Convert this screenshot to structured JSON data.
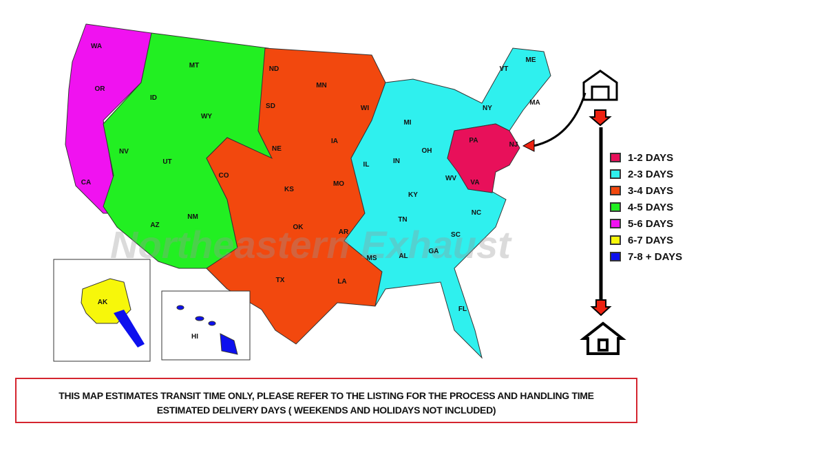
{
  "watermark": "Northeastern Exhaust",
  "zones": [
    {
      "label": "1-2 DAYS",
      "color": "#e8105a"
    },
    {
      "label": "2-3 DAYS",
      "color": "#2ff0ee"
    },
    {
      "label": "3-4 DAYS",
      "color": "#f2480e"
    },
    {
      "label": "4-5 DAYS",
      "color": "#22ef22"
    },
    {
      "label": "5-6 DAYS",
      "color": "#f012f0"
    },
    {
      "label": "6-7 DAYS",
      "color": "#f7f70a"
    },
    {
      "label": "7-8 + DAYS",
      "color": "#0d10ee"
    }
  ],
  "states": [
    "WA",
    "OR",
    "CA",
    "NV",
    "ID",
    "MT",
    "WY",
    "UT",
    "AZ",
    "CO",
    "NM",
    "ND",
    "SD",
    "NE",
    "KS",
    "OK",
    "TX",
    "MN",
    "IA",
    "MO",
    "AR",
    "LA",
    "WI",
    "IL",
    "MI",
    "IN",
    "OH",
    "KY",
    "TN",
    "MS",
    "AL",
    "GA",
    "FL",
    "SC",
    "NC",
    "VA",
    "WV",
    "PA",
    "NY",
    "VT",
    "ME",
    "MA",
    "NJ",
    "AK",
    "HI"
  ],
  "icons": {
    "origin": "warehouse-icon",
    "destination": "house-icon"
  },
  "note": {
    "line1": "THIS MAP ESTIMATES TRANSIT TIME ONLY, PLEASE REFER TO THE LISTING FOR THE PROCESS AND HANDLING TIME",
    "line2": "ESTIMATED DELIVERY DAYS ( WEEKENDS AND HOLIDAYS NOT INCLUDED)"
  }
}
